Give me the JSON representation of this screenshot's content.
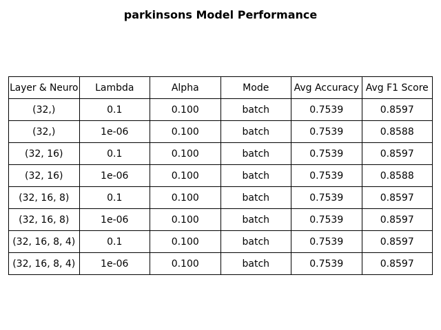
{
  "chart_data": {
    "type": "table",
    "title": "parkinsons Model Performance",
    "columns": [
      "Layer & Neuro",
      "Lambda",
      "Alpha",
      "Mode",
      "Avg Accuracy",
      "Avg F1 Score"
    ],
    "rows": [
      [
        "(32,)",
        "0.1",
        "0.100",
        "batch",
        "0.7539",
        "0.8597"
      ],
      [
        "(32,)",
        "1e-06",
        "0.100",
        "batch",
        "0.7539",
        "0.8588"
      ],
      [
        "(32, 16)",
        "0.1",
        "0.100",
        "batch",
        "0.7539",
        "0.8597"
      ],
      [
        "(32, 16)",
        "1e-06",
        "0.100",
        "batch",
        "0.7539",
        "0.8588"
      ],
      [
        "(32, 16, 8)",
        "0.1",
        "0.100",
        "batch",
        "0.7539",
        "0.8597"
      ],
      [
        "(32, 16, 8)",
        "1e-06",
        "0.100",
        "batch",
        "0.7539",
        "0.8597"
      ],
      [
        "(32, 16, 8, 4)",
        "0.1",
        "0.100",
        "batch",
        "0.7539",
        "0.8597"
      ],
      [
        "(32, 16, 8, 4)",
        "1e-06",
        "0.100",
        "batch",
        "0.7539",
        "0.8597"
      ]
    ]
  }
}
